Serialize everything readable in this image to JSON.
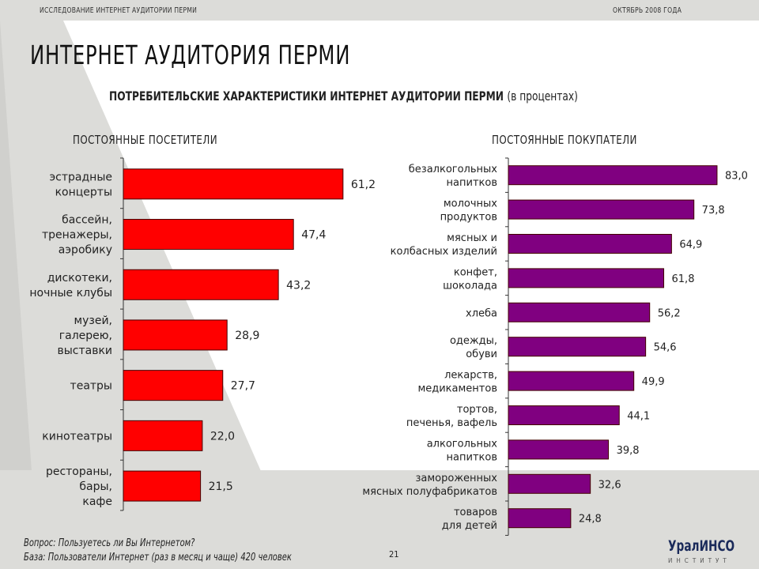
{
  "header": {
    "left": "ИССЛЕДОВАНИЕ ИНТЕРНЕТ АУДИТОРИИ ПЕРМИ",
    "right": "ОКТЯБРЬ 2008 ГОДА"
  },
  "title": "ИНТЕРНЕТ АУДИТОРИЯ ПЕРМИ",
  "subtitle": {
    "bold": "ПОТРЕБИТЕЛЬСКИЕ ХАРАКТЕРИСТИКИ ИНТЕРНЕТ АУДИТОРИИ ПЕРМИ",
    "normal": "(в процентах)"
  },
  "colors": {
    "left_bars": "#ff0000",
    "right_bars": "#800080"
  },
  "chart_data": [
    {
      "type": "bar",
      "orientation": "horizontal",
      "title": "ПОСТОЯННЫЕ ПОСЕТИТЕЛИ",
      "categories": [
        "эстрадные\nконцерты",
        "бассейн,\nтренажеры,\nаэробику",
        "дискотеки,\nночные клубы",
        "музей,\nгалерею,\nвыставки",
        "театры",
        "кинотеатры",
        "рестораны,\nбары,\nкафе"
      ],
      "values": [
        61.2,
        47.4,
        43.2,
        28.9,
        27.7,
        22.0,
        21.5
      ],
      "labels": [
        "61,2",
        "47,4",
        "43,2",
        "28,9",
        "27,7",
        "22,0",
        "21,5"
      ]
    },
    {
      "type": "bar",
      "orientation": "horizontal",
      "title": "ПОСТОЯННЫЕ ПОКУПАТЕЛИ",
      "categories": [
        "безалкогольных\nнапитков",
        "молочных\nпродуктов",
        "мясных и\nколбасных изделий",
        "конфет,\nшоколада",
        "хлеба",
        "одежды,\nобуви",
        "лекарств,\nмедикаментов",
        "тортов,\nпеченья, вафель",
        "алкогольных\nнапитков",
        "замороженных\nмясных полуфабрикатов",
        "товаров\nдля детей"
      ],
      "values": [
        83.0,
        73.8,
        64.9,
        61.8,
        56.2,
        54.6,
        49.9,
        44.1,
        39.8,
        32.6,
        24.8
      ],
      "labels": [
        "83,0",
        "73,8",
        "64,9",
        "61,8",
        "56,2",
        "54,6",
        "49,9",
        "44,1",
        "39,8",
        "32,6",
        "24,8"
      ]
    }
  ],
  "footer": {
    "question": "Вопрос: Пользуетесь ли Вы Интернетом?",
    "base": "База: Пользователи Интернет (раз в месяц и чаще)  420  человек",
    "page": "21"
  },
  "logo": {
    "name": "УралИНСО",
    "sub": "ИНСТИТУТ"
  }
}
